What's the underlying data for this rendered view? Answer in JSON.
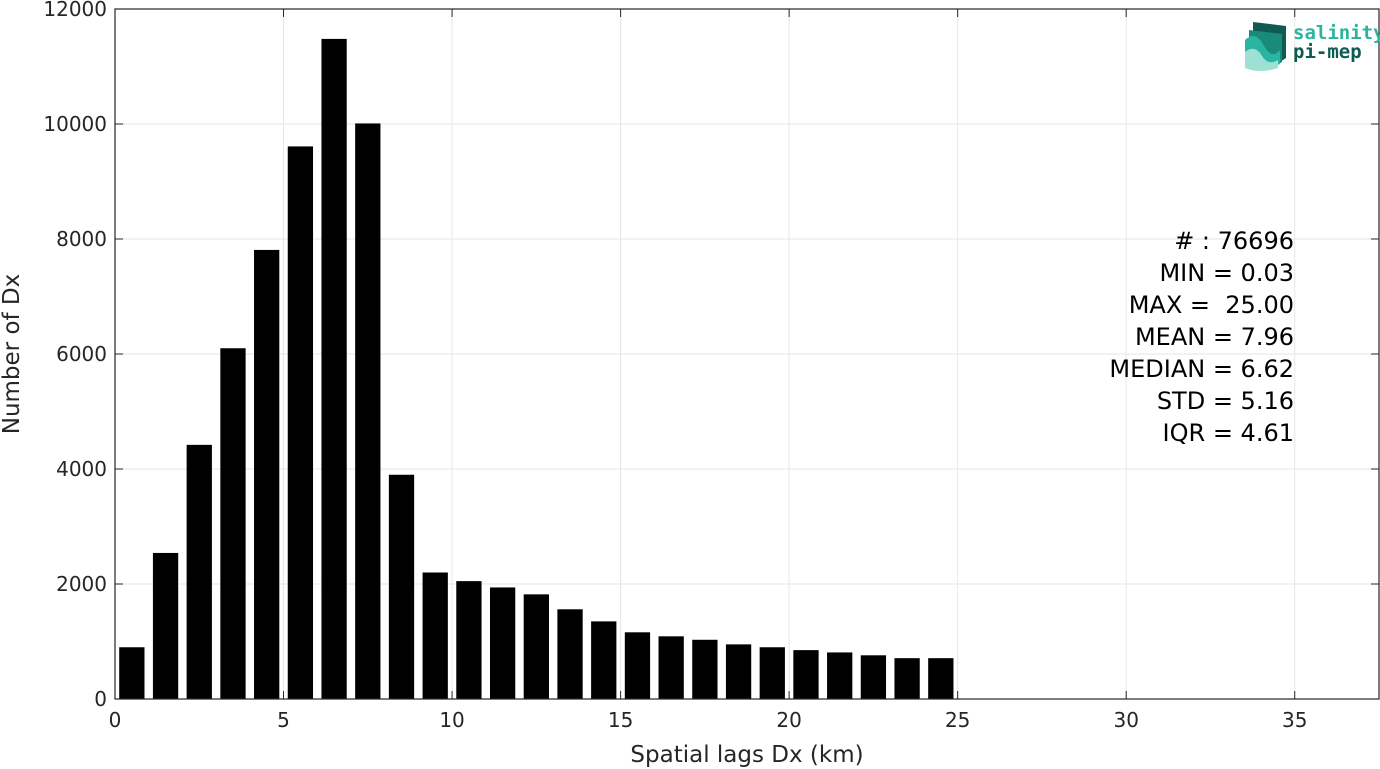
{
  "chart_data": {
    "type": "bar",
    "xlabel": "Spatial lags Dx (km)",
    "ylabel": "Number of Dx",
    "xlim": [
      0,
      37.5
    ],
    "ylim": [
      0,
      12000
    ],
    "xticks": [
      0,
      5,
      10,
      15,
      20,
      25,
      30,
      35
    ],
    "yticks": [
      0,
      2000,
      4000,
      6000,
      8000,
      10000,
      12000
    ],
    "grid": true,
    "bar_color": "#000000",
    "bin_width": 1,
    "x": [
      0.5,
      1.5,
      2.5,
      3.5,
      4.5,
      5.5,
      6.5,
      7.5,
      8.5,
      9.5,
      10.5,
      11.5,
      12.5,
      13.5,
      14.5,
      15.5,
      16.5,
      17.5,
      18.5,
      19.5,
      20.5,
      21.5,
      22.5,
      23.5,
      24.5
    ],
    "values": [
      900,
      2540,
      4420,
      6100,
      7810,
      9610,
      11480,
      10010,
      3900,
      2200,
      2050,
      1940,
      1820,
      1560,
      1350,
      1160,
      1090,
      1030,
      950,
      900,
      850,
      810,
      760,
      710,
      710
    ],
    "annotations": [
      "# : 76696",
      "MIN = 0.03",
      "MAX =  25.00",
      "MEAN = 7.96",
      "MEDIAN = 6.62",
      "STD = 5.16",
      "IQR = 4.61"
    ]
  },
  "logo": {
    "line1": "salinity",
    "line2": "pi-mep",
    "color_light": "#2bb5a0",
    "color_dark": "#0f5a52"
  }
}
